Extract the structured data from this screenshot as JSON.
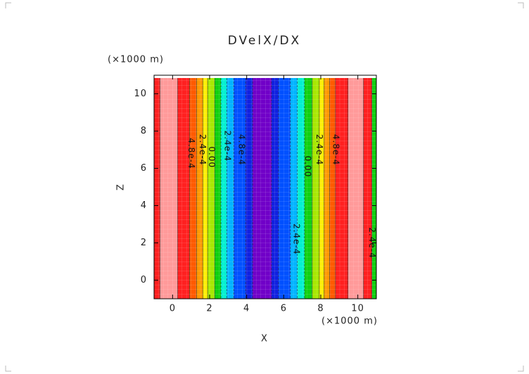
{
  "chart_data": {
    "type": "contour",
    "title": "DVelX/DX",
    "x_label": "X",
    "y_label": "Z",
    "x_unit": "(×1000 m)",
    "y_unit": "(×1000 m)",
    "xlim": [
      -1,
      11
    ],
    "ylim": [
      -1,
      11
    ],
    "xticks": [
      0,
      2,
      4,
      6,
      8,
      10
    ],
    "yticks": [
      0,
      2,
      4,
      6,
      8,
      10
    ],
    "zmax": 10.85,
    "bands": [
      {
        "x0": -1,
        "x1": -0.68,
        "color": "#ff2020"
      },
      {
        "x0": -0.68,
        "x1": 0.27,
        "color": "#ff9a9a"
      },
      {
        "x0": 0.27,
        "x1": 0.91,
        "color": "#ff2020"
      },
      {
        "x0": 0.91,
        "x1": 1.29,
        "color": "#ff5a00"
      },
      {
        "x0": 1.29,
        "x1": 1.63,
        "color": "#ff9900"
      },
      {
        "x0": 1.63,
        "x1": 1.89,
        "color": "#ffee00"
      },
      {
        "x0": 1.89,
        "x1": 2.27,
        "color": "#a8e800"
      },
      {
        "x0": 2.27,
        "x1": 2.61,
        "color": "#10d010"
      },
      {
        "x0": 2.61,
        "x1": 2.92,
        "color": "#00f0d0"
      },
      {
        "x0": 2.92,
        "x1": 3.3,
        "color": "#00b4ff"
      },
      {
        "x0": 3.3,
        "x1": 3.94,
        "color": "#0050ff"
      },
      {
        "x0": 3.94,
        "x1": 4.32,
        "color": "#1020e0"
      },
      {
        "x0": 4.32,
        "x1": 5.34,
        "color": "#7000c8"
      },
      {
        "x0": 5.34,
        "x1": 5.72,
        "color": "#1020e0"
      },
      {
        "x0": 5.72,
        "x1": 6.36,
        "color": "#0050ff"
      },
      {
        "x0": 6.36,
        "x1": 6.74,
        "color": "#00b4ff"
      },
      {
        "x0": 6.74,
        "x1": 7.12,
        "color": "#00f0d0"
      },
      {
        "x0": 7.12,
        "x1": 7.54,
        "color": "#10d010"
      },
      {
        "x0": 7.54,
        "x1": 7.92,
        "color": "#a8e800"
      },
      {
        "x0": 7.92,
        "x1": 8.18,
        "color": "#ffee00"
      },
      {
        "x0": 8.18,
        "x1": 8.48,
        "color": "#ff9900"
      },
      {
        "x0": 8.48,
        "x1": 8.79,
        "color": "#ff5a00"
      },
      {
        "x0": 8.79,
        "x1": 9.47,
        "color": "#ff2020"
      },
      {
        "x0": 9.47,
        "x1": 10.3,
        "color": "#ff9a9a"
      },
      {
        "x0": 10.3,
        "x1": 10.76,
        "color": "#ff2020"
      },
      {
        "x0": 10.76,
        "x1": 11,
        "color": "#10d010"
      }
    ],
    "contour_labels": [
      {
        "text": "4.8e-4",
        "x": 1.0,
        "y": 6.8
      },
      {
        "text": "2.4e-4",
        "x": 1.6,
        "y": 7.0
      },
      {
        "text": "0.00",
        "x": 2.1,
        "y": 6.6
      },
      {
        "text": "2.4e-4",
        "x": 2.95,
        "y": 7.2
      },
      {
        "text": "4.8e-4",
        "x": 3.7,
        "y": 7.0
      },
      {
        "text": "0.00",
        "x": 7.27,
        "y": 6.1
      },
      {
        "text": "2.4e-4",
        "x": 7.9,
        "y": 7.0
      },
      {
        "text": "4.8e-4",
        "x": 8.8,
        "y": 7.0
      },
      {
        "text": "2.4e-4",
        "x": 6.67,
        "y": 2.2
      },
      {
        "text": "2.4e-4",
        "x": 10.75,
        "y": 2.0
      }
    ]
  }
}
